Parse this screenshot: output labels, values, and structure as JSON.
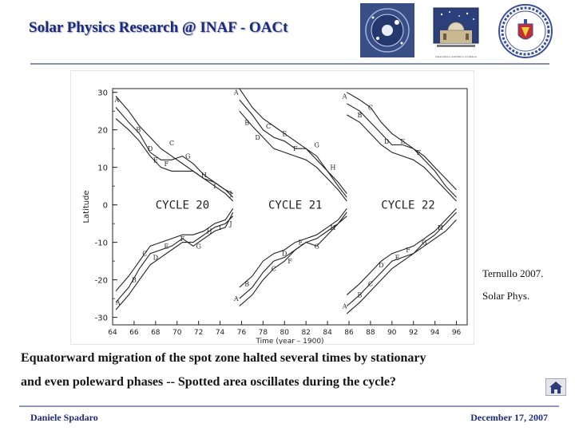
{
  "header": {
    "title": "Solar Physics Research @ INAF - OACt",
    "logos": [
      "astronomy-society-logo",
      "catania-observatory-logo",
      "university-seal-logo"
    ],
    "logo_caption": "Osservatorio Astrofisico di Catania"
  },
  "figure": {
    "credit_line1": "Ternullo 2007.",
    "credit_line2": "Solar Phys."
  },
  "chart_data": {
    "type": "line",
    "xlabel": "Time (year – 1900)",
    "ylabel": "Latitude",
    "xlim": [
      64,
      97
    ],
    "ylim": [
      -32,
      31
    ],
    "xticks": [
      64,
      66,
      68,
      70,
      72,
      74,
      76,
      78,
      80,
      82,
      84,
      86,
      88,
      90,
      92,
      94,
      96
    ],
    "yticks": [
      30,
      20,
      10,
      0,
      -10,
      -20,
      -30
    ],
    "annotations": [
      {
        "text": "CYCLE 20",
        "x": 70.5,
        "y": 0
      },
      {
        "text": "CYCLE 21",
        "x": 81.0,
        "y": 0
      },
      {
        "text": "CYCLE 22",
        "x": 91.5,
        "y": 0
      }
    ],
    "point_labels": [
      {
        "text": "A",
        "x": 64.4,
        "y": 28
      },
      {
        "text": "B",
        "x": 66.4,
        "y": 20
      },
      {
        "text": "C",
        "x": 69.5,
        "y": 16.5
      },
      {
        "text": "D",
        "x": 67.5,
        "y": 15
      },
      {
        "text": "E",
        "x": 68.0,
        "y": 12
      },
      {
        "text": "F",
        "x": 69.0,
        "y": 11
      },
      {
        "text": "G",
        "x": 71.0,
        "y": 13
      },
      {
        "text": "H",
        "x": 72.5,
        "y": 8
      },
      {
        "text": "I",
        "x": 73.5,
        "y": 5
      },
      {
        "text": "J",
        "x": 75.0,
        "y": 3
      },
      {
        "text": "A",
        "x": 75.5,
        "y": 30
      },
      {
        "text": "B",
        "x": 76.5,
        "y": 22
      },
      {
        "text": "C",
        "x": 78.5,
        "y": 21
      },
      {
        "text": "D",
        "x": 77.5,
        "y": 18
      },
      {
        "text": "E",
        "x": 80.0,
        "y": 19
      },
      {
        "text": "F",
        "x": 81.0,
        "y": 15
      },
      {
        "text": "G",
        "x": 83.0,
        "y": 16
      },
      {
        "text": "H",
        "x": 84.5,
        "y": 10
      },
      {
        "text": "A",
        "x": 85.6,
        "y": 29
      },
      {
        "text": "B",
        "x": 87.0,
        "y": 24
      },
      {
        "text": "C",
        "x": 88.0,
        "y": 26
      },
      {
        "text": "D",
        "x": 89.5,
        "y": 17
      },
      {
        "text": "E",
        "x": 91.0,
        "y": 17
      },
      {
        "text": "F",
        "x": 92.5,
        "y": 14
      },
      {
        "text": "A",
        "x": 64.5,
        "y": -26
      },
      {
        "text": "B",
        "x": 66.0,
        "y": -20
      },
      {
        "text": "C",
        "x": 67.0,
        "y": -13
      },
      {
        "text": "D",
        "x": 68.0,
        "y": -14
      },
      {
        "text": "E",
        "x": 69.0,
        "y": -11
      },
      {
        "text": "F",
        "x": 70.5,
        "y": -9
      },
      {
        "text": "G",
        "x": 72.0,
        "y": -11
      },
      {
        "text": "H",
        "x": 73.0,
        "y": -7
      },
      {
        "text": "I",
        "x": 74.0,
        "y": -6
      },
      {
        "text": "J",
        "x": 75.0,
        "y": -5
      },
      {
        "text": "A",
        "x": 75.5,
        "y": -25
      },
      {
        "text": "B",
        "x": 76.5,
        "y": -21
      },
      {
        "text": "C",
        "x": 79.0,
        "y": -17
      },
      {
        "text": "D",
        "x": 80.0,
        "y": -13
      },
      {
        "text": "E",
        "x": 81.5,
        "y": -10
      },
      {
        "text": "F",
        "x": 80.5,
        "y": -15
      },
      {
        "text": "G",
        "x": 83.0,
        "y": -11
      },
      {
        "text": "H",
        "x": 84.5,
        "y": -6
      },
      {
        "text": "A",
        "x": 85.6,
        "y": -27
      },
      {
        "text": "B",
        "x": 87.0,
        "y": -24
      },
      {
        "text": "C",
        "x": 88.0,
        "y": -21
      },
      {
        "text": "D",
        "x": 89.0,
        "y": -16
      },
      {
        "text": "E",
        "x": 90.5,
        "y": -14
      },
      {
        "text": "F",
        "x": 91.5,
        "y": -12
      },
      {
        "text": "G",
        "x": 93.0,
        "y": -10
      },
      {
        "text": "H",
        "x": 94.5,
        "y": -6
      }
    ],
    "series": [
      {
        "hemisphere": "north",
        "cycle": 20,
        "x": [
          64.3,
          65.5,
          66.5,
          67.5,
          68.5,
          69.5,
          70.5,
          71.5,
          72.5,
          73.5,
          74.5,
          75.2
        ],
        "y": [
          29,
          25,
          21,
          18,
          15,
          13,
          11,
          9,
          7,
          6,
          4,
          3
        ]
      },
      {
        "hemisphere": "north",
        "cycle": 20,
        "x": [
          64.3,
          65.5,
          66.5,
          67.5,
          68.5,
          69.5,
          70.5,
          71.5,
          72.5,
          73.5,
          74.5,
          75.2
        ],
        "y": [
          26,
          22,
          19,
          14,
          12,
          12,
          13,
          11,
          8,
          6,
          4,
          2
        ]
      },
      {
        "hemisphere": "north",
        "cycle": 20,
        "x": [
          64.3,
          65.5,
          66.5,
          67.5,
          68.5,
          69.5,
          70.5,
          71.5,
          72.5,
          73.5,
          74.5,
          75.2
        ],
        "y": [
          23,
          20,
          17,
          13,
          10,
          9,
          9,
          9,
          7,
          5,
          3,
          1
        ]
      },
      {
        "hemisphere": "north",
        "cycle": 21,
        "x": [
          75.8,
          77.0,
          78.0,
          79.0,
          80.0,
          81.0,
          82.0,
          83.0,
          84.0,
          85.0,
          85.8
        ],
        "y": [
          31,
          26,
          23,
          21,
          19,
          17,
          15,
          12,
          9,
          6,
          3
        ]
      },
      {
        "hemisphere": "north",
        "cycle": 21,
        "x": [
          75.8,
          77.0,
          78.0,
          79.0,
          80.0,
          81.0,
          82.0,
          83.0,
          84.0,
          85.0,
          85.8
        ],
        "y": [
          28,
          24,
          20,
          18,
          17,
          15,
          15,
          13,
          9,
          5,
          2
        ]
      },
      {
        "hemisphere": "north",
        "cycle": 21,
        "x": [
          75.8,
          77.0,
          78.0,
          79.0,
          80.0,
          81.0,
          82.0,
          83.0,
          84.0,
          85.0,
          85.8
        ],
        "y": [
          25,
          21,
          18,
          15,
          14,
          13,
          12,
          10,
          7,
          4,
          1
        ]
      },
      {
        "hemisphere": "north",
        "cycle": 22,
        "x": [
          85.8,
          87.0,
          88.0,
          89.0,
          90.0,
          91.0,
          92.0,
          93.0,
          94.0,
          95.0,
          96.0
        ],
        "y": [
          30,
          28,
          26,
          22,
          19,
          17,
          15,
          13,
          10,
          7,
          4
        ]
      },
      {
        "hemisphere": "north",
        "cycle": 22,
        "x": [
          85.8,
          87.0,
          88.0,
          89.0,
          90.0,
          91.0,
          92.0,
          93.0,
          94.0,
          95.0,
          96.0
        ],
        "y": [
          27,
          25,
          22,
          19,
          16,
          16,
          15,
          12,
          9,
          5,
          2
        ]
      },
      {
        "hemisphere": "north",
        "cycle": 22,
        "x": [
          85.8,
          87.0,
          88.0,
          89.0,
          90.0,
          91.0,
          92.0,
          93.0,
          94.0,
          95.0,
          96.0
        ],
        "y": [
          24,
          22,
          19,
          16,
          14,
          13,
          12,
          10,
          7,
          4,
          1
        ]
      },
      {
        "hemisphere": "south",
        "cycle": 20,
        "x": [
          64.3,
          65.5,
          66.5,
          67.5,
          68.5,
          69.5,
          70.5,
          71.5,
          72.5,
          73.5,
          74.5,
          75.2
        ],
        "y": [
          -28,
          -24,
          -20,
          -16,
          -14,
          -12,
          -10,
          -10,
          -8,
          -6,
          -5,
          -3
        ]
      },
      {
        "hemisphere": "south",
        "cycle": 20,
        "x": [
          64.3,
          65.5,
          66.5,
          67.5,
          68.5,
          69.5,
          70.5,
          71.5,
          72.5,
          73.5,
          74.5,
          75.2
        ],
        "y": [
          -26,
          -22,
          -17,
          -13,
          -12,
          -11,
          -9,
          -11,
          -9,
          -7,
          -6,
          -2
        ]
      },
      {
        "hemisphere": "south",
        "cycle": 20,
        "x": [
          64.3,
          65.5,
          66.5,
          67.5,
          68.5,
          69.5,
          70.5,
          71.5,
          72.5,
          73.5,
          74.5,
          75.2
        ],
        "y": [
          -23,
          -19,
          -15,
          -11,
          -10,
          -9,
          -8,
          -8,
          -7,
          -5,
          -4,
          -1
        ]
      },
      {
        "hemisphere": "south",
        "cycle": 21,
        "x": [
          75.8,
          77.0,
          78.0,
          79.0,
          80.0,
          81.0,
          82.0,
          83.0,
          84.0,
          85.0,
          85.8
        ],
        "y": [
          -27,
          -24,
          -20,
          -17,
          -15,
          -12,
          -10,
          -9,
          -7,
          -5,
          -3
        ]
      },
      {
        "hemisphere": "south",
        "cycle": 21,
        "x": [
          75.8,
          77.0,
          78.0,
          79.0,
          80.0,
          81.0,
          82.0,
          83.0,
          84.0,
          85.0,
          85.8
        ],
        "y": [
          -25,
          -22,
          -18,
          -15,
          -14,
          -12,
          -10,
          -11,
          -8,
          -5,
          -2
        ]
      },
      {
        "hemisphere": "south",
        "cycle": 21,
        "x": [
          75.8,
          77.0,
          78.0,
          79.0,
          80.0,
          81.0,
          82.0,
          83.0,
          84.0,
          85.0,
          85.8
        ],
        "y": [
          -22,
          -19,
          -15,
          -13,
          -12,
          -10,
          -9,
          -8,
          -6,
          -4,
          -1
        ]
      },
      {
        "hemisphere": "south",
        "cycle": 22,
        "x": [
          85.8,
          87.0,
          88.0,
          89.0,
          90.0,
          91.0,
          92.0,
          93.0,
          94.0,
          95.0,
          96.0
        ],
        "y": [
          -29,
          -26,
          -23,
          -20,
          -17,
          -15,
          -13,
          -11,
          -9,
          -7,
          -4
        ]
      },
      {
        "hemisphere": "south",
        "cycle": 22,
        "x": [
          85.8,
          87.0,
          88.0,
          89.0,
          90.0,
          91.0,
          92.0,
          93.0,
          94.0,
          95.0,
          96.0
        ],
        "y": [
          -27,
          -24,
          -21,
          -18,
          -15,
          -14,
          -13,
          -10,
          -8,
          -5,
          -2
        ]
      },
      {
        "hemisphere": "south",
        "cycle": 22,
        "x": [
          85.8,
          87.0,
          88.0,
          89.0,
          90.0,
          91.0,
          92.0,
          93.0,
          94.0,
          95.0,
          96.0
        ],
        "y": [
          -24,
          -21,
          -18,
          -15,
          -13,
          -12,
          -11,
          -9,
          -7,
          -4,
          -1
        ]
      }
    ]
  },
  "caption": {
    "line1": "Equatorward migration of the spot zone halted several times by stationary",
    "line2": "and even poleward phases  -- Spotted area oscillates during the cycle?"
  },
  "footer": {
    "author": "Daniele Spadaro",
    "date": "December 17, 2007"
  },
  "colors": {
    "title": "#1d2a7a",
    "rule": "#8890b8",
    "plot_ink": "#222222"
  },
  "icons": {
    "home": "home-icon"
  }
}
